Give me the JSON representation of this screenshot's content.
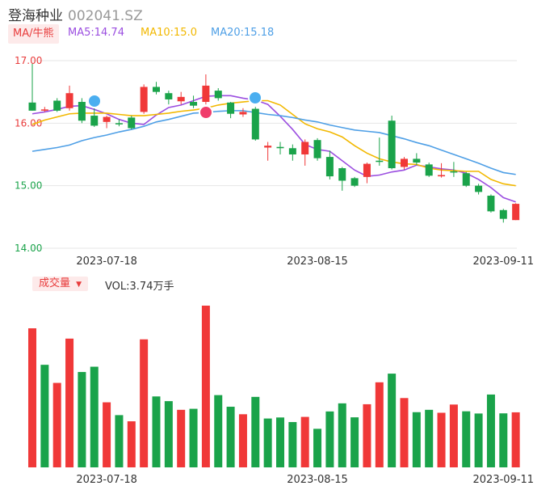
{
  "header": {
    "stock_name": "登海种业",
    "stock_code": "002041.SZ",
    "ma_button": "MA/牛熊",
    "ma5": "MA5:14.74",
    "ma10": "MA10:15.0",
    "ma20": "MA20:15.18",
    "volume_button": "成交量",
    "volume_dropdown_icon": "caret-down-icon",
    "volume_label": "VOL:3.74万手"
  },
  "colors": {
    "up": "#f03838",
    "down": "#1aa34a",
    "ma5": "#9b4ee0",
    "ma10": "#f2b800",
    "ma20": "#4e9fe6",
    "axis_text_red": "#e83b3b",
    "axis_text_green": "#1aa34a"
  },
  "chart_data": [
    {
      "type": "candlestick",
      "y_ticks": [
        "17.00",
        "16.00",
        "15.00",
        "14.00"
      ],
      "ylim": [
        14.0,
        17.0
      ],
      "x_tick_labels": [
        "2023-07-18",
        "2023-08-15",
        "2023-09-11"
      ],
      "grid": true,
      "candles": [
        {
          "o": 16.33,
          "c": 16.2,
          "h": 16.95,
          "l": 16.2
        },
        {
          "o": 16.2,
          "c": 16.22,
          "h": 16.26,
          "l": 16.18
        },
        {
          "o": 16.36,
          "c": 16.2,
          "h": 16.4,
          "l": 16.18
        },
        {
          "o": 16.24,
          "c": 16.48,
          "h": 16.6,
          "l": 16.2
        },
        {
          "o": 16.34,
          "c": 16.04,
          "h": 16.4,
          "l": 16.0
        },
        {
          "o": 16.12,
          "c": 15.96,
          "h": 16.24,
          "l": 15.94
        },
        {
          "o": 16.02,
          "c": 16.1,
          "h": 16.12,
          "l": 15.92
        },
        {
          "o": 16.0,
          "c": 15.99,
          "h": 16.06,
          "l": 15.95
        },
        {
          "o": 16.09,
          "c": 15.92,
          "h": 16.12,
          "l": 15.9
        },
        {
          "o": 16.18,
          "c": 16.58,
          "h": 16.62,
          "l": 16.15
        },
        {
          "o": 16.58,
          "c": 16.5,
          "h": 16.66,
          "l": 16.46
        },
        {
          "o": 16.48,
          "c": 16.38,
          "h": 16.52,
          "l": 16.3
        },
        {
          "o": 16.35,
          "c": 16.42,
          "h": 16.5,
          "l": 16.3
        },
        {
          "o": 16.34,
          "c": 16.28,
          "h": 16.44,
          "l": 16.24
        },
        {
          "o": 16.34,
          "c": 16.6,
          "h": 16.78,
          "l": 16.3
        },
        {
          "o": 16.52,
          "c": 16.4,
          "h": 16.56,
          "l": 16.36
        },
        {
          "o": 16.33,
          "c": 16.15,
          "h": 16.34,
          "l": 16.08
        },
        {
          "o": 16.14,
          "c": 16.18,
          "h": 16.24,
          "l": 16.1
        },
        {
          "o": 16.23,
          "c": 15.74,
          "h": 16.26,
          "l": 15.72
        },
        {
          "o": 15.61,
          "c": 15.64,
          "h": 15.7,
          "l": 15.4
        },
        {
          "o": 15.62,
          "c": 15.6,
          "h": 15.7,
          "l": 15.5
        },
        {
          "o": 15.6,
          "c": 15.5,
          "h": 15.66,
          "l": 15.4
        },
        {
          "o": 15.5,
          "c": 15.7,
          "h": 15.74,
          "l": 15.32
        },
        {
          "o": 15.73,
          "c": 15.44,
          "h": 15.76,
          "l": 15.4
        },
        {
          "o": 15.46,
          "c": 15.15,
          "h": 15.56,
          "l": 15.1
        },
        {
          "o": 15.28,
          "c": 15.08,
          "h": 15.3,
          "l": 14.92
        },
        {
          "o": 15.12,
          "c": 15.0,
          "h": 15.14,
          "l": 14.98
        },
        {
          "o": 15.14,
          "c": 15.35,
          "h": 15.37,
          "l": 15.04
        },
        {
          "o": 15.4,
          "c": 15.38,
          "h": 15.77,
          "l": 15.32
        },
        {
          "o": 16.04,
          "c": 15.28,
          "h": 16.12,
          "l": 15.26
        },
        {
          "o": 15.3,
          "c": 15.43,
          "h": 15.46,
          "l": 15.26
        },
        {
          "o": 15.43,
          "c": 15.37,
          "h": 15.52,
          "l": 15.33
        },
        {
          "o": 15.34,
          "c": 15.16,
          "h": 15.37,
          "l": 15.14
        },
        {
          "o": 15.15,
          "c": 15.17,
          "h": 15.36,
          "l": 15.13
        },
        {
          "o": 15.23,
          "c": 15.21,
          "h": 15.38,
          "l": 15.14
        },
        {
          "o": 15.2,
          "c": 15.0,
          "h": 15.22,
          "l": 14.98
        },
        {
          "o": 15.0,
          "c": 14.9,
          "h": 15.03,
          "l": 14.86
        },
        {
          "o": 14.84,
          "c": 14.59,
          "h": 14.86,
          "l": 14.57
        },
        {
          "o": 14.61,
          "c": 14.47,
          "h": 14.63,
          "l": 14.41
        },
        {
          "o": 14.45,
          "c": 14.71,
          "h": 14.72,
          "l": 14.45
        }
      ],
      "series": [
        {
          "name": "MA5",
          "values": [
            16.15,
            16.18,
            16.22,
            16.27,
            16.28,
            16.22,
            16.15,
            16.06,
            16.0,
            15.98,
            16.13,
            16.25,
            16.29,
            16.36,
            16.43,
            16.44,
            16.44,
            16.4,
            16.37,
            16.3,
            16.11,
            15.9,
            15.66,
            15.58,
            15.55,
            15.4,
            15.25,
            15.15,
            15.17,
            15.22,
            15.25,
            15.33,
            15.3,
            15.27,
            15.25,
            15.2,
            15.1,
            14.97,
            14.81,
            14.74
          ]
        },
        {
          "name": "MA10",
          "values": [
            15.98,
            16.05,
            16.1,
            16.15,
            16.16,
            16.16,
            16.16,
            16.14,
            16.12,
            16.12,
            16.14,
            16.16,
            16.19,
            16.21,
            16.24,
            16.29,
            16.32,
            16.34,
            16.36,
            16.36,
            16.29,
            16.14,
            15.99,
            15.91,
            15.86,
            15.78,
            15.64,
            15.52,
            15.43,
            15.38,
            15.35,
            15.34,
            15.28,
            15.25,
            15.24,
            15.23,
            15.23,
            15.1,
            15.03,
            15.0
          ]
        },
        {
          "name": "MA20",
          "values": [
            15.55,
            15.58,
            15.61,
            15.65,
            15.72,
            15.77,
            15.81,
            15.86,
            15.9,
            15.95,
            16.02,
            16.06,
            16.11,
            16.16,
            16.17,
            16.19,
            16.2,
            16.2,
            16.17,
            16.14,
            16.12,
            16.09,
            16.05,
            16.02,
            15.97,
            15.93,
            15.89,
            15.87,
            15.85,
            15.8,
            15.75,
            15.69,
            15.64,
            15.57,
            15.5,
            15.43,
            15.36,
            15.28,
            15.21,
            15.18
          ]
        }
      ]
    },
    {
      "type": "bar",
      "title": "成交量",
      "x_tick_labels": [
        "2023-07-18",
        "2023-08-15",
        "2023-09-11"
      ],
      "values": [
        9.45,
        6.97,
        5.74,
        8.75,
        6.48,
        6.84,
        4.42,
        3.55,
        3.13,
        8.7,
        4.82,
        4.5,
        3.91,
        3.98,
        10.99,
        4.91,
        4.12,
        3.61,
        4.79,
        3.32,
        3.39,
        3.08,
        3.43,
        2.62,
        3.8,
        4.35,
        3.4,
        4.29,
        5.78,
        6.37,
        4.71,
        3.75,
        3.91,
        3.71,
        4.27,
        3.81,
        3.66,
        4.95,
        3.67,
        3.74
      ],
      "directions": [
        "up",
        "down",
        "up",
        "up",
        "down",
        "down",
        "up",
        "down",
        "up",
        "up",
        "down",
        "down",
        "up",
        "down",
        "up",
        "down",
        "down",
        "up",
        "down",
        "down",
        "down",
        "down",
        "up",
        "down",
        "down",
        "down",
        "down",
        "up",
        "up",
        "down",
        "up",
        "down",
        "down",
        "up",
        "up",
        "down",
        "down",
        "down",
        "down",
        "up"
      ]
    }
  ]
}
